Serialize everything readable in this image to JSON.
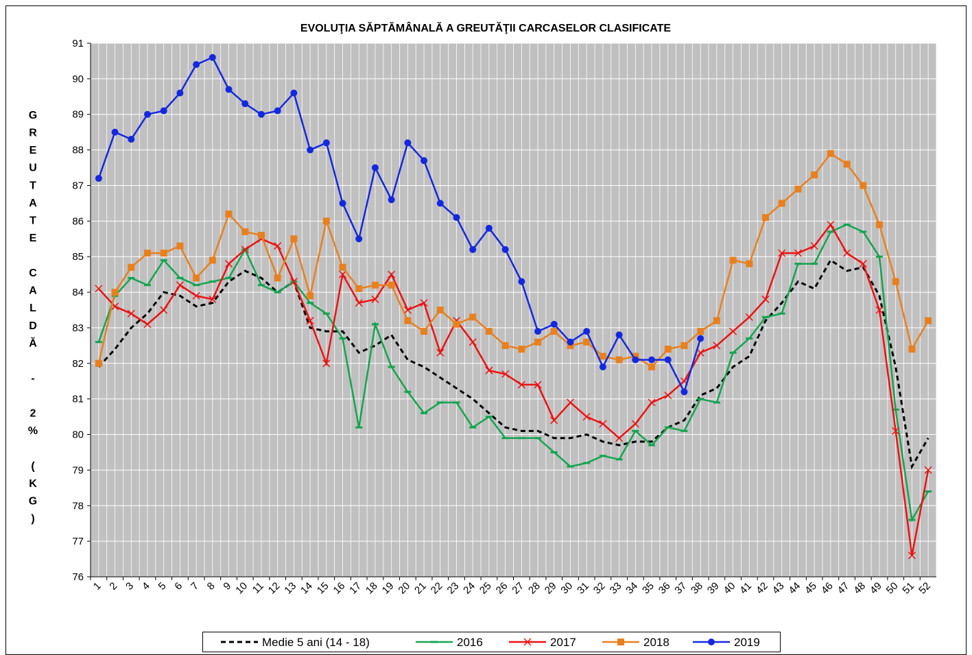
{
  "chart_data": {
    "type": "line",
    "title": "EVOLUŢIA SĂPTĂMÂNALĂ A GREUTĂŢII CARCASELOR CLASIFICATE",
    "y_label": "GREUTATE CALDĂ - 2% (KG)",
    "categories": [
      1,
      2,
      3,
      4,
      5,
      6,
      7,
      8,
      9,
      10,
      11,
      12,
      13,
      14,
      15,
      16,
      17,
      18,
      19,
      20,
      21,
      22,
      23,
      24,
      25,
      26,
      27,
      28,
      29,
      30,
      31,
      32,
      33,
      34,
      35,
      36,
      37,
      38,
      39,
      40,
      41,
      42,
      43,
      44,
      45,
      46,
      47,
      48,
      49,
      50,
      51,
      52
    ],
    "ylim": [
      76,
      91
    ],
    "yticks": [
      76,
      77,
      78,
      79,
      80,
      81,
      82,
      83,
      84,
      85,
      86,
      87,
      88,
      89,
      90,
      91
    ],
    "grid": true,
    "legend": "bottom",
    "series": [
      {
        "name": "Medie 5 ani (14 - 18)",
        "color": "#000000",
        "dashed": true,
        "marker": "none",
        "values": [
          81.9,
          82.4,
          83.0,
          83.4,
          84.0,
          83.9,
          83.6,
          83.7,
          84.3,
          84.6,
          84.4,
          84.0,
          84.3,
          83.0,
          82.9,
          82.9,
          82.3,
          82.5,
          82.8,
          82.1,
          81.9,
          81.6,
          81.3,
          81.0,
          80.6,
          80.2,
          80.1,
          80.1,
          79.9,
          79.9,
          80.0,
          79.8,
          79.7,
          79.8,
          79.8,
          80.2,
          80.4,
          81.1,
          81.3,
          81.9,
          82.2,
          83.2,
          83.7,
          84.3,
          84.1,
          84.9,
          84.6,
          84.7,
          83.9,
          81.9,
          79.1,
          79.9
        ]
      },
      {
        "name": "2016",
        "color": "#14a550",
        "marker": "dash",
        "values": [
          82.6,
          83.9,
          84.4,
          84.2,
          84.9,
          84.4,
          84.2,
          84.3,
          84.4,
          85.2,
          84.2,
          84.0,
          84.3,
          83.7,
          83.4,
          82.7,
          80.2,
          83.1,
          81.9,
          81.2,
          80.6,
          80.9,
          80.9,
          80.2,
          80.5,
          79.9,
          79.9,
          79.9,
          79.5,
          79.1,
          79.2,
          79.4,
          79.3,
          80.1,
          79.7,
          80.2,
          80.1,
          81.0,
          80.9,
          82.3,
          82.7,
          83.3,
          83.4,
          84.8,
          84.8,
          85.7,
          85.9,
          85.7,
          85.0,
          80.7,
          77.6,
          78.4
        ]
      },
      {
        "name": "2017",
        "color": "#ee1111",
        "marker": "x",
        "values": [
          84.1,
          83.6,
          83.4,
          83.1,
          83.5,
          84.2,
          83.9,
          83.8,
          84.8,
          85.2,
          85.5,
          85.3,
          84.3,
          83.2,
          82.0,
          84.5,
          83.7,
          83.8,
          84.5,
          83.5,
          83.7,
          82.3,
          83.2,
          82.6,
          81.8,
          81.7,
          81.4,
          81.4,
          80.4,
          80.9,
          80.5,
          80.3,
          79.9,
          80.3,
          80.9,
          81.1,
          81.5,
          82.3,
          82.5,
          82.9,
          83.3,
          83.8,
          85.1,
          85.1,
          85.3,
          85.9,
          85.1,
          84.8,
          83.5,
          80.1,
          76.6,
          79.0
        ]
      },
      {
        "name": "2018",
        "color": "#e8801e",
        "marker": "square",
        "values": [
          82.0,
          84.0,
          84.7,
          85.1,
          85.1,
          85.3,
          84.4,
          84.9,
          86.2,
          85.7,
          85.6,
          84.4,
          85.5,
          83.9,
          86.0,
          84.7,
          84.1,
          84.2,
          84.2,
          83.2,
          82.9,
          83.5,
          83.1,
          83.3,
          82.9,
          82.5,
          82.4,
          82.6,
          82.9,
          82.5,
          82.6,
          82.2,
          82.1,
          82.2,
          81.9,
          82.4,
          82.5,
          82.9,
          83.2,
          84.9,
          84.8,
          86.1,
          86.5,
          86.9,
          87.3,
          87.9,
          87.6,
          87.0,
          85.9,
          84.3,
          82.4,
          83.2
        ]
      },
      {
        "name": "2019",
        "color": "#1428e0",
        "marker": "circle",
        "values": [
          87.2,
          88.5,
          88.3,
          89.0,
          89.1,
          89.6,
          90.4,
          90.6,
          89.7,
          89.3,
          89.0,
          89.1,
          89.6,
          88.0,
          88.2,
          86.5,
          85.5,
          87.5,
          86.6,
          88.2,
          87.7,
          86.5,
          86.1,
          85.2,
          85.8,
          85.2,
          84.3,
          82.9,
          83.1,
          82.6,
          82.9,
          81.9,
          82.8,
          82.1,
          82.1,
          82.1,
          81.2,
          82.7,
          null,
          null,
          null,
          null,
          null,
          null,
          null,
          null,
          null,
          null,
          null,
          null,
          null,
          null
        ]
      }
    ]
  }
}
